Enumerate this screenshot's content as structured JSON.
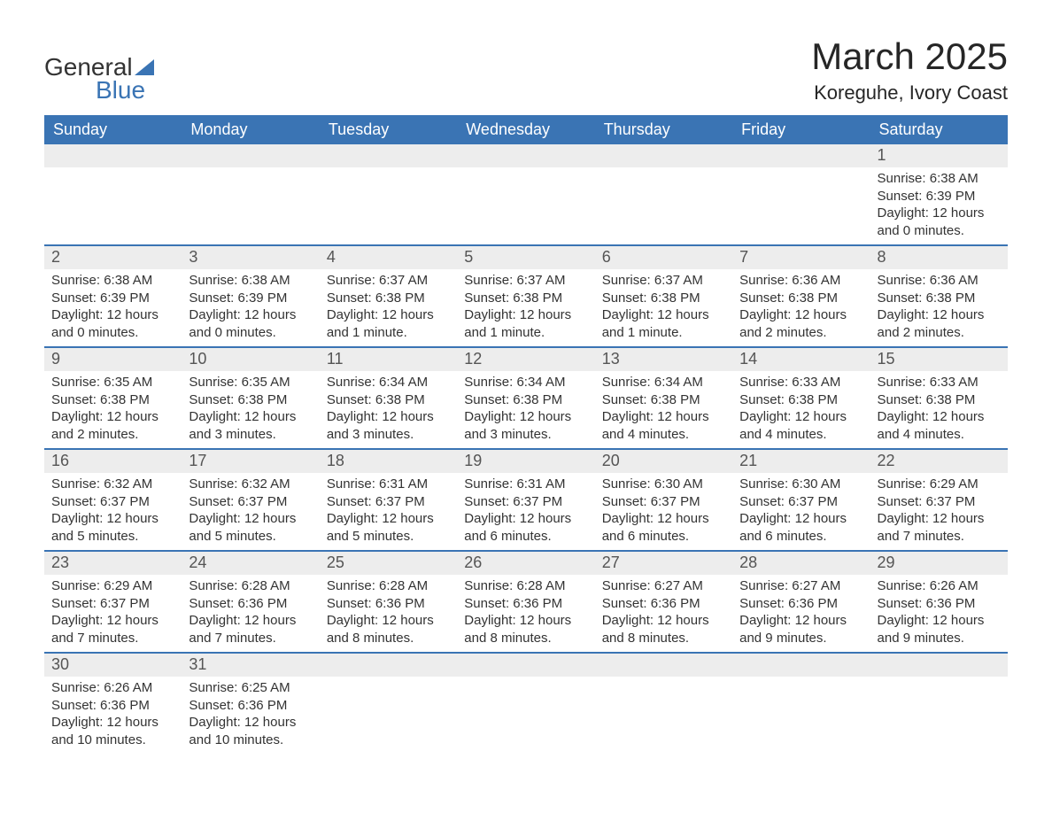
{
  "logo": {
    "line1": "General",
    "line2": "Blue"
  },
  "title": "March 2025",
  "location": "Koreguhe, Ivory Coast",
  "style": {
    "header_bg": "#3a74b4",
    "header_text": "#ffffff",
    "daynum_bg": "#ededed",
    "daynum_text": "#555555",
    "body_text": "#333333",
    "row_divider": "#3a74b4",
    "page_bg": "#ffffff",
    "title_fontsize": 42,
    "location_fontsize": 22,
    "header_fontsize": 18,
    "daynum_fontsize": 18,
    "body_fontsize": 15
  },
  "columns": [
    "Sunday",
    "Monday",
    "Tuesday",
    "Wednesday",
    "Thursday",
    "Friday",
    "Saturday"
  ],
  "weeks": [
    [
      {
        "n": "",
        "sunrise": "",
        "sunset": "",
        "daylight": ""
      },
      {
        "n": "",
        "sunrise": "",
        "sunset": "",
        "daylight": ""
      },
      {
        "n": "",
        "sunrise": "",
        "sunset": "",
        "daylight": ""
      },
      {
        "n": "",
        "sunrise": "",
        "sunset": "",
        "daylight": ""
      },
      {
        "n": "",
        "sunrise": "",
        "sunset": "",
        "daylight": ""
      },
      {
        "n": "",
        "sunrise": "",
        "sunset": "",
        "daylight": ""
      },
      {
        "n": "1",
        "sunrise": "Sunrise: 6:38 AM",
        "sunset": "Sunset: 6:39 PM",
        "daylight": "Daylight: 12 hours and 0 minutes."
      }
    ],
    [
      {
        "n": "2",
        "sunrise": "Sunrise: 6:38 AM",
        "sunset": "Sunset: 6:39 PM",
        "daylight": "Daylight: 12 hours and 0 minutes."
      },
      {
        "n": "3",
        "sunrise": "Sunrise: 6:38 AM",
        "sunset": "Sunset: 6:39 PM",
        "daylight": "Daylight: 12 hours and 0 minutes."
      },
      {
        "n": "4",
        "sunrise": "Sunrise: 6:37 AM",
        "sunset": "Sunset: 6:38 PM",
        "daylight": "Daylight: 12 hours and 1 minute."
      },
      {
        "n": "5",
        "sunrise": "Sunrise: 6:37 AM",
        "sunset": "Sunset: 6:38 PM",
        "daylight": "Daylight: 12 hours and 1 minute."
      },
      {
        "n": "6",
        "sunrise": "Sunrise: 6:37 AM",
        "sunset": "Sunset: 6:38 PM",
        "daylight": "Daylight: 12 hours and 1 minute."
      },
      {
        "n": "7",
        "sunrise": "Sunrise: 6:36 AM",
        "sunset": "Sunset: 6:38 PM",
        "daylight": "Daylight: 12 hours and 2 minutes."
      },
      {
        "n": "8",
        "sunrise": "Sunrise: 6:36 AM",
        "sunset": "Sunset: 6:38 PM",
        "daylight": "Daylight: 12 hours and 2 minutes."
      }
    ],
    [
      {
        "n": "9",
        "sunrise": "Sunrise: 6:35 AM",
        "sunset": "Sunset: 6:38 PM",
        "daylight": "Daylight: 12 hours and 2 minutes."
      },
      {
        "n": "10",
        "sunrise": "Sunrise: 6:35 AM",
        "sunset": "Sunset: 6:38 PM",
        "daylight": "Daylight: 12 hours and 3 minutes."
      },
      {
        "n": "11",
        "sunrise": "Sunrise: 6:34 AM",
        "sunset": "Sunset: 6:38 PM",
        "daylight": "Daylight: 12 hours and 3 minutes."
      },
      {
        "n": "12",
        "sunrise": "Sunrise: 6:34 AM",
        "sunset": "Sunset: 6:38 PM",
        "daylight": "Daylight: 12 hours and 3 minutes."
      },
      {
        "n": "13",
        "sunrise": "Sunrise: 6:34 AM",
        "sunset": "Sunset: 6:38 PM",
        "daylight": "Daylight: 12 hours and 4 minutes."
      },
      {
        "n": "14",
        "sunrise": "Sunrise: 6:33 AM",
        "sunset": "Sunset: 6:38 PM",
        "daylight": "Daylight: 12 hours and 4 minutes."
      },
      {
        "n": "15",
        "sunrise": "Sunrise: 6:33 AM",
        "sunset": "Sunset: 6:38 PM",
        "daylight": "Daylight: 12 hours and 4 minutes."
      }
    ],
    [
      {
        "n": "16",
        "sunrise": "Sunrise: 6:32 AM",
        "sunset": "Sunset: 6:37 PM",
        "daylight": "Daylight: 12 hours and 5 minutes."
      },
      {
        "n": "17",
        "sunrise": "Sunrise: 6:32 AM",
        "sunset": "Sunset: 6:37 PM",
        "daylight": "Daylight: 12 hours and 5 minutes."
      },
      {
        "n": "18",
        "sunrise": "Sunrise: 6:31 AM",
        "sunset": "Sunset: 6:37 PM",
        "daylight": "Daylight: 12 hours and 5 minutes."
      },
      {
        "n": "19",
        "sunrise": "Sunrise: 6:31 AM",
        "sunset": "Sunset: 6:37 PM",
        "daylight": "Daylight: 12 hours and 6 minutes."
      },
      {
        "n": "20",
        "sunrise": "Sunrise: 6:30 AM",
        "sunset": "Sunset: 6:37 PM",
        "daylight": "Daylight: 12 hours and 6 minutes."
      },
      {
        "n": "21",
        "sunrise": "Sunrise: 6:30 AM",
        "sunset": "Sunset: 6:37 PM",
        "daylight": "Daylight: 12 hours and 6 minutes."
      },
      {
        "n": "22",
        "sunrise": "Sunrise: 6:29 AM",
        "sunset": "Sunset: 6:37 PM",
        "daylight": "Daylight: 12 hours and 7 minutes."
      }
    ],
    [
      {
        "n": "23",
        "sunrise": "Sunrise: 6:29 AM",
        "sunset": "Sunset: 6:37 PM",
        "daylight": "Daylight: 12 hours and 7 minutes."
      },
      {
        "n": "24",
        "sunrise": "Sunrise: 6:28 AM",
        "sunset": "Sunset: 6:36 PM",
        "daylight": "Daylight: 12 hours and 7 minutes."
      },
      {
        "n": "25",
        "sunrise": "Sunrise: 6:28 AM",
        "sunset": "Sunset: 6:36 PM",
        "daylight": "Daylight: 12 hours and 8 minutes."
      },
      {
        "n": "26",
        "sunrise": "Sunrise: 6:28 AM",
        "sunset": "Sunset: 6:36 PM",
        "daylight": "Daylight: 12 hours and 8 minutes."
      },
      {
        "n": "27",
        "sunrise": "Sunrise: 6:27 AM",
        "sunset": "Sunset: 6:36 PM",
        "daylight": "Daylight: 12 hours and 8 minutes."
      },
      {
        "n": "28",
        "sunrise": "Sunrise: 6:27 AM",
        "sunset": "Sunset: 6:36 PM",
        "daylight": "Daylight: 12 hours and 9 minutes."
      },
      {
        "n": "29",
        "sunrise": "Sunrise: 6:26 AM",
        "sunset": "Sunset: 6:36 PM",
        "daylight": "Daylight: 12 hours and 9 minutes."
      }
    ],
    [
      {
        "n": "30",
        "sunrise": "Sunrise: 6:26 AM",
        "sunset": "Sunset: 6:36 PM",
        "daylight": "Daylight: 12 hours and 10 minutes."
      },
      {
        "n": "31",
        "sunrise": "Sunrise: 6:25 AM",
        "sunset": "Sunset: 6:36 PM",
        "daylight": "Daylight: 12 hours and 10 minutes."
      },
      {
        "n": "",
        "sunrise": "",
        "sunset": "",
        "daylight": ""
      },
      {
        "n": "",
        "sunrise": "",
        "sunset": "",
        "daylight": ""
      },
      {
        "n": "",
        "sunrise": "",
        "sunset": "",
        "daylight": ""
      },
      {
        "n": "",
        "sunrise": "",
        "sunset": "",
        "daylight": ""
      },
      {
        "n": "",
        "sunrise": "",
        "sunset": "",
        "daylight": ""
      }
    ]
  ]
}
